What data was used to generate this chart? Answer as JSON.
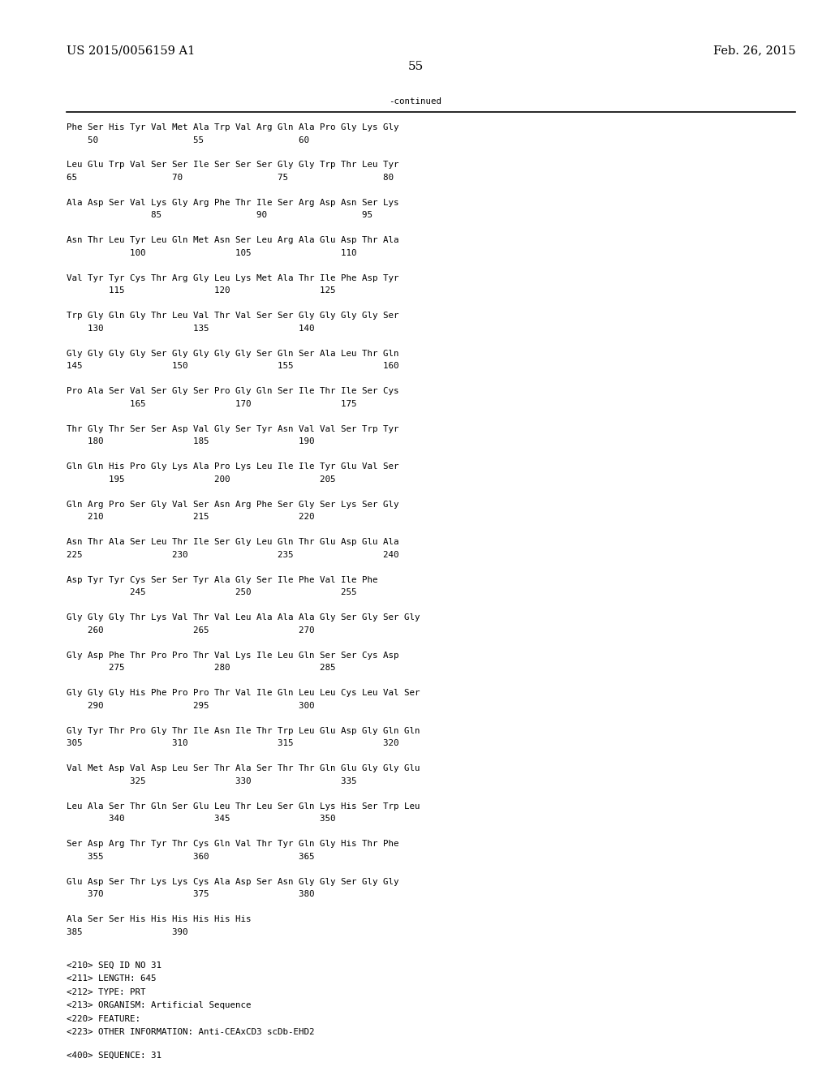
{
  "header_left": "US 2015/0056159 A1",
  "header_right": "Feb. 26, 2015",
  "page_number": "55",
  "continued_label": "-continued",
  "background_color": "#ffffff",
  "text_color": "#000000",
  "sequence_blocks": [
    {
      "seq": "Phe Ser His Tyr Val Met Ala Trp Val Arg Gln Ala Pro Gly Lys Gly",
      "num": "    50                  55                  60"
    },
    {
      "seq": "Leu Glu Trp Val Ser Ser Ile Ser Ser Ser Gly Gly Trp Thr Leu Tyr",
      "num": "65                  70                  75                  80"
    },
    {
      "seq": "Ala Asp Ser Val Lys Gly Arg Phe Thr Ile Ser Arg Asp Asn Ser Lys",
      "num": "                85                  90                  95"
    },
    {
      "seq": "Asn Thr Leu Tyr Leu Gln Met Asn Ser Leu Arg Ala Glu Asp Thr Ala",
      "num": "            100                 105                 110"
    },
    {
      "seq": "Val Tyr Tyr Cys Thr Arg Gly Leu Lys Met Ala Thr Ile Phe Asp Tyr",
      "num": "        115                 120                 125"
    },
    {
      "seq": "Trp Gly Gln Gly Thr Leu Val Thr Val Ser Ser Gly Gly Gly Gly Ser",
      "num": "    130                 135                 140"
    },
    {
      "seq": "Gly Gly Gly Gly Ser Gly Gly Gly Gly Ser Gln Ser Ala Leu Thr Gln",
      "num": "145                 150                 155                 160"
    },
    {
      "seq": "Pro Ala Ser Val Ser Gly Ser Pro Gly Gln Ser Ile Thr Ile Ser Cys",
      "num": "            165                 170                 175"
    },
    {
      "seq": "Thr Gly Thr Ser Ser Asp Val Gly Ser Tyr Asn Val Val Ser Trp Tyr",
      "num": "    180                 185                 190"
    },
    {
      "seq": "Gln Gln His Pro Gly Lys Ala Pro Lys Leu Ile Ile Tyr Glu Val Ser",
      "num": "        195                 200                 205"
    },
    {
      "seq": "Gln Arg Pro Ser Gly Val Ser Asn Arg Phe Ser Gly Ser Lys Ser Gly",
      "num": "    210                 215                 220"
    },
    {
      "seq": "Asn Thr Ala Ser Leu Thr Ile Ser Gly Leu Gln Thr Glu Asp Glu Ala",
      "num": "225                 230                 235                 240"
    },
    {
      "seq": "Asp Tyr Tyr Cys Ser Ser Tyr Ala Gly Ser Ile Phe Val Ile Phe",
      "num": "            245                 250                 255"
    },
    {
      "seq": "Gly Gly Gly Thr Lys Val Thr Val Leu Ala Ala Ala Gly Ser Gly Ser Gly",
      "num": "    260                 265                 270"
    },
    {
      "seq": "Gly Asp Phe Thr Pro Pro Thr Val Lys Ile Leu Gln Ser Ser Cys Asp",
      "num": "        275                 280                 285"
    },
    {
      "seq": "Gly Gly Gly His Phe Pro Pro Thr Val Ile Gln Leu Leu Cys Leu Val Ser",
      "num": "    290                 295                 300"
    },
    {
      "seq": "Gly Tyr Thr Pro Gly Thr Ile Asn Ile Thr Trp Leu Glu Asp Gly Gln Gln",
      "num": "305                 310                 315                 320"
    },
    {
      "seq": "Val Met Asp Val Asp Leu Ser Thr Ala Ser Thr Thr Gln Glu Gly Gly Glu",
      "num": "            325                 330                 335"
    },
    {
      "seq": "Leu Ala Ser Thr Gln Ser Glu Leu Thr Leu Ser Gln Lys His Ser Trp Leu",
      "num": "        340                 345                 350"
    },
    {
      "seq": "Ser Asp Arg Thr Tyr Thr Cys Gln Val Thr Tyr Gln Gly His Thr Phe",
      "num": "    355                 360                 365"
    },
    {
      "seq": "Glu Asp Ser Thr Lys Lys Cys Ala Asp Ser Asn Gly Gly Ser Gly Gly",
      "num": "    370                 375                 380"
    },
    {
      "seq": "Ala Ser Ser His His His His His His",
      "num": "385                 390"
    }
  ],
  "meta_lines": [
    "<210> SEQ ID NO 31",
    "<211> LENGTH: 645",
    "<212> TYPE: PRT",
    "<213> ORGANISM: Artificial Sequence",
    "<220> FEATURE:",
    "<223> OTHER INFORMATION: Anti-CEAxCD3 scDb-EHD2",
    "",
    "<400> SEQUENCE: 31"
  ],
  "font_size_header": 10.5,
  "font_size_page": 11,
  "font_size_body": 7.8,
  "font_size_meta": 7.8
}
